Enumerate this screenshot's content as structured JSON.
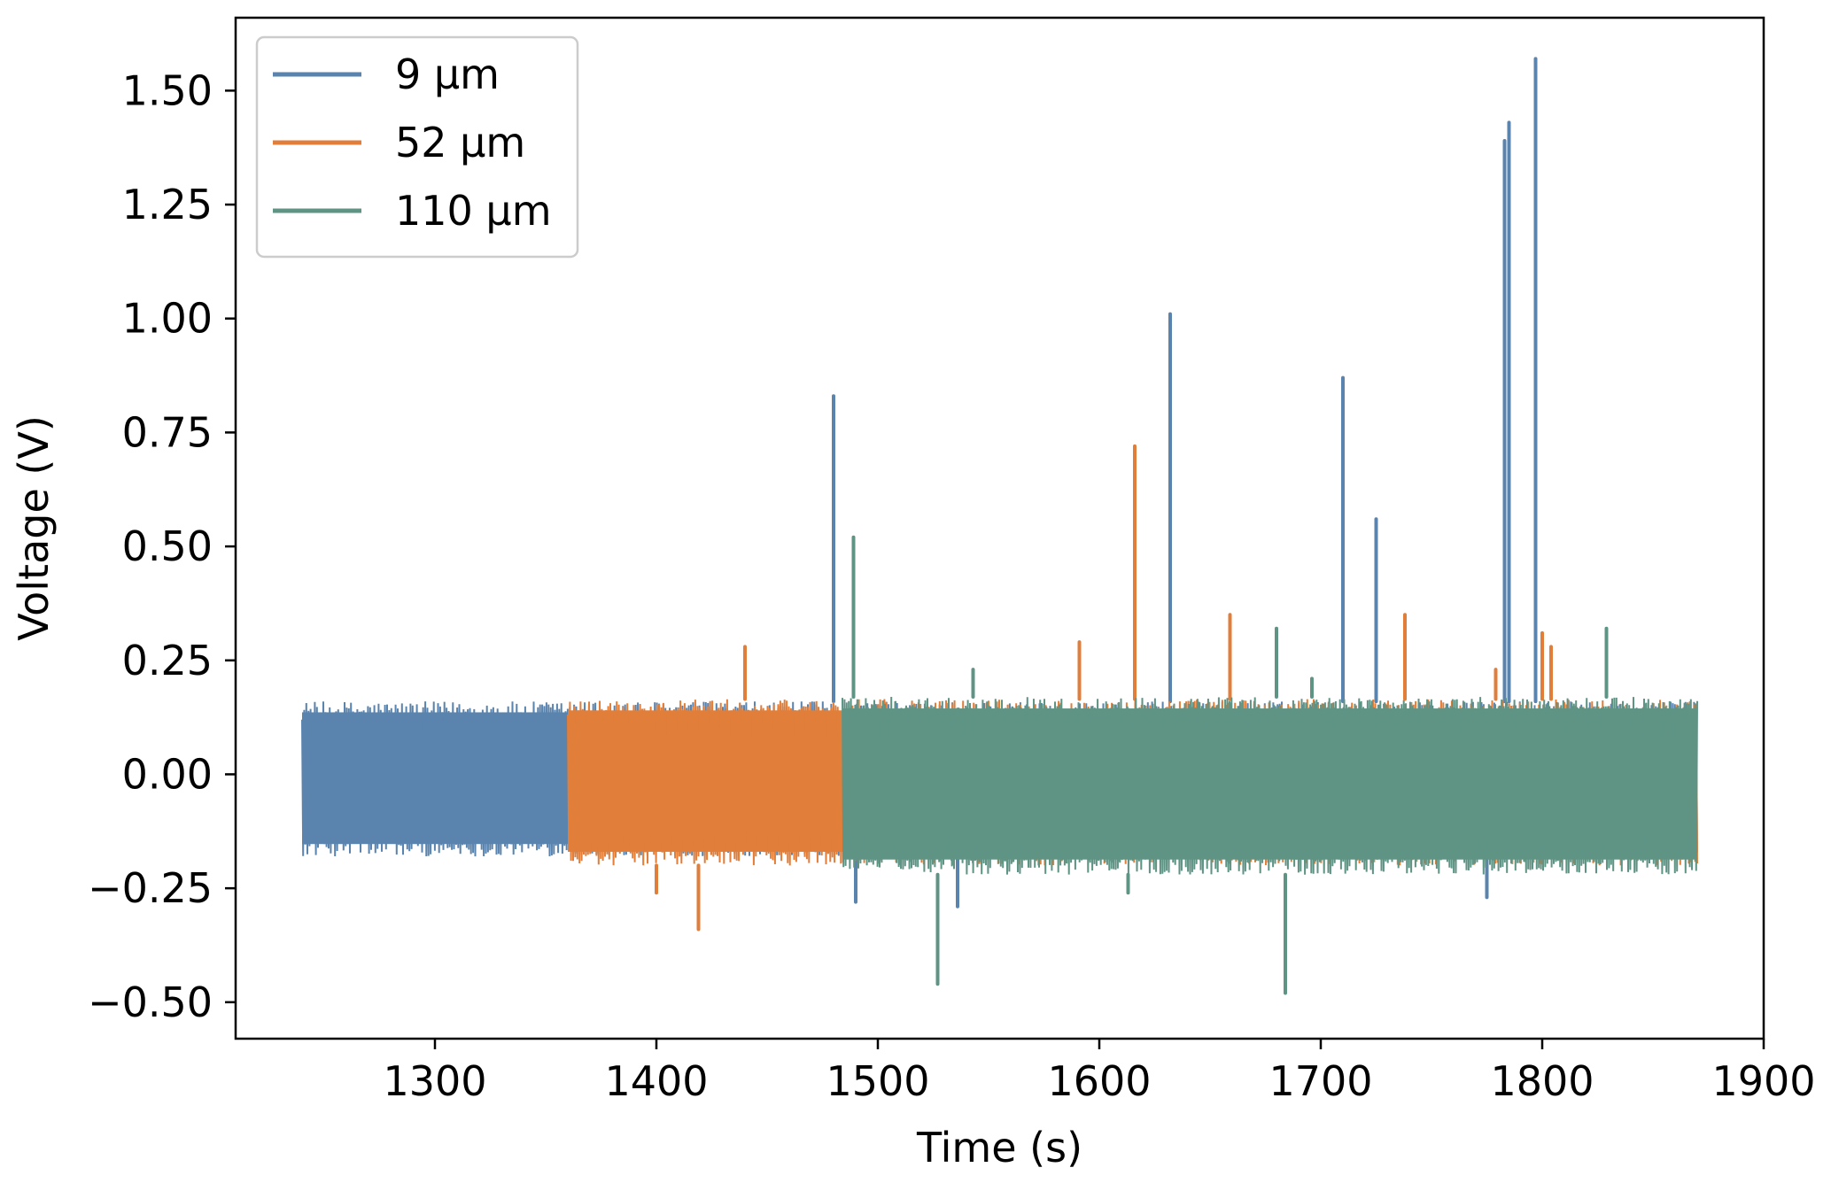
{
  "chart_data": {
    "type": "line",
    "title": "",
    "xlabel": "Time (s)",
    "ylabel": "Voltage (V)",
    "xlim": [
      1210,
      1900
    ],
    "ylim": [
      -0.58,
      1.66
    ],
    "xticks": [
      1300,
      1400,
      1500,
      1600,
      1700,
      1800,
      1900
    ],
    "xtick_labels": [
      "1300",
      "1400",
      "1500",
      "1600",
      "1700",
      "1800",
      "1900"
    ],
    "yticks": [
      -0.5,
      -0.25,
      0.0,
      0.25,
      0.5,
      0.75,
      1.0,
      1.25,
      1.5
    ],
    "ytick_labels": [
      "−0.50",
      "−0.25",
      "0.00",
      "0.25",
      "0.50",
      "0.75",
      "1.00",
      "1.25",
      "1.50"
    ],
    "grid": false,
    "legend_position": "top-left",
    "series": [
      {
        "name": "9 µm",
        "color": "#5a84ae",
        "x_range": [
          1240,
          1870
        ],
        "noise_band": [
          -0.18,
          0.16
        ],
        "spikes": [
          {
            "x": 1480,
            "y": 0.83
          },
          {
            "x": 1632,
            "y": 1.01
          },
          {
            "x": 1710,
            "y": 0.87
          },
          {
            "x": 1725,
            "y": 0.56
          },
          {
            "x": 1783,
            "y": 1.39
          },
          {
            "x": 1785,
            "y": 1.43
          },
          {
            "x": 1797,
            "y": 1.57
          },
          {
            "x": 1536,
            "y": -0.29
          },
          {
            "x": 1490,
            "y": -0.28
          },
          {
            "x": 1775,
            "y": -0.27
          }
        ]
      },
      {
        "name": "52 µm",
        "color": "#e07e3a",
        "x_range": [
          1360,
          1870
        ],
        "noise_band": [
          -0.2,
          0.165
        ],
        "spikes": [
          {
            "x": 1440,
            "y": 0.28
          },
          {
            "x": 1591,
            "y": 0.29
          },
          {
            "x": 1616,
            "y": 0.72
          },
          {
            "x": 1659,
            "y": 0.35
          },
          {
            "x": 1738,
            "y": 0.35
          },
          {
            "x": 1779,
            "y": 0.23
          },
          {
            "x": 1800,
            "y": 0.31
          },
          {
            "x": 1804,
            "y": 0.28
          },
          {
            "x": 1419,
            "y": -0.34
          },
          {
            "x": 1400,
            "y": -0.26
          }
        ]
      },
      {
        "name": "110 µm",
        "color": "#5f9485",
        "x_range": [
          1484,
          1870
        ],
        "noise_band": [
          -0.22,
          0.17
        ],
        "spikes": [
          {
            "x": 1489,
            "y": 0.52
          },
          {
            "x": 1543,
            "y": 0.23
          },
          {
            "x": 1680,
            "y": 0.32
          },
          {
            "x": 1696,
            "y": 0.21
          },
          {
            "x": 1829,
            "y": 0.32
          },
          {
            "x": 1527,
            "y": -0.46
          },
          {
            "x": 1684,
            "y": -0.48
          },
          {
            "x": 1613,
            "y": -0.26
          }
        ]
      }
    ]
  }
}
